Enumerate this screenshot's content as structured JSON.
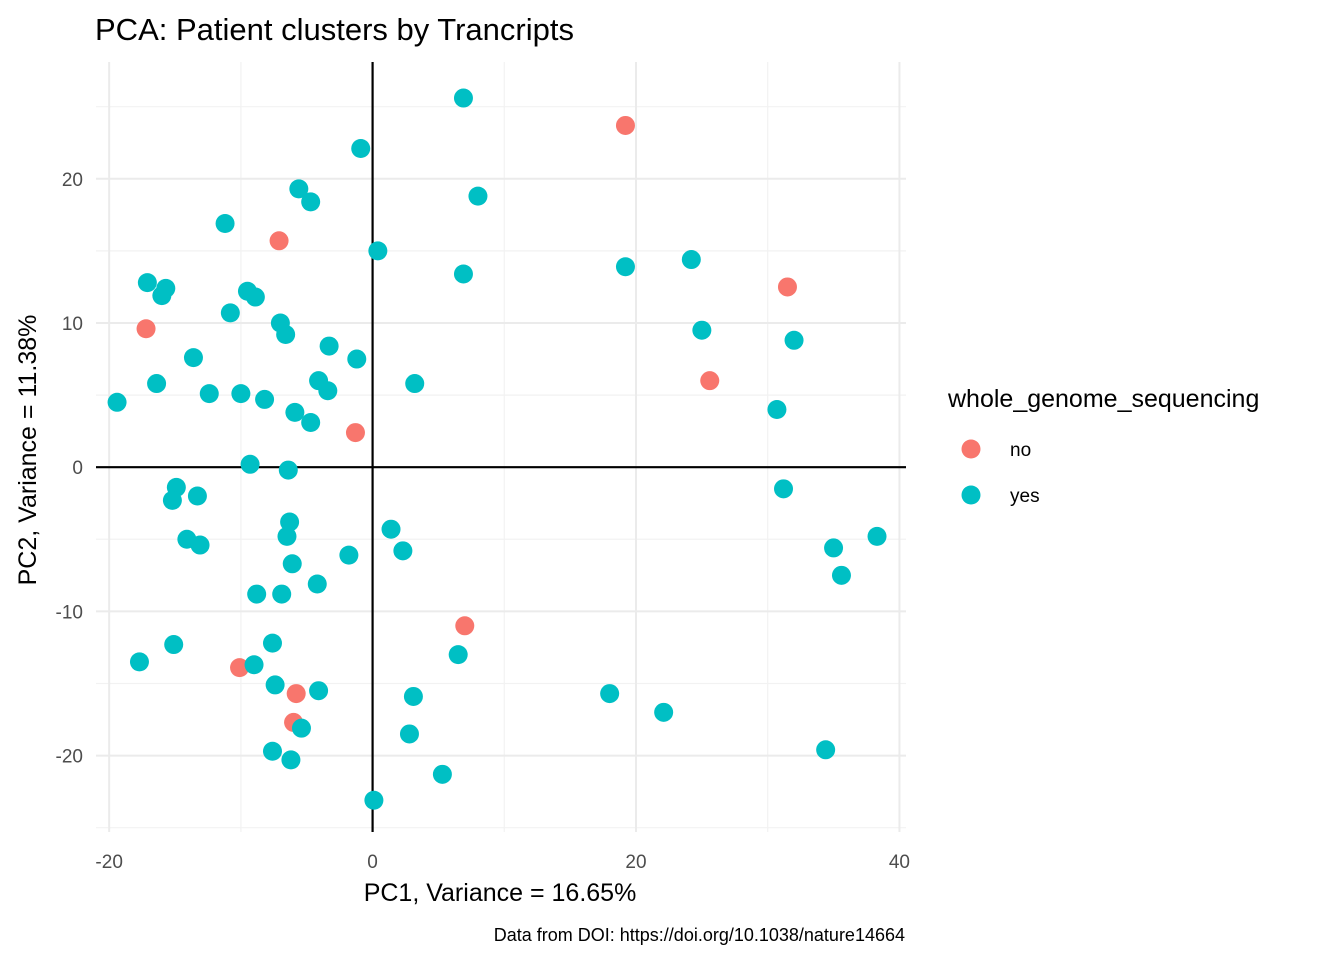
{
  "chart_data": {
    "type": "scatter",
    "title": "PCA: Patient clusters by Trancripts",
    "xlabel": "PC1, Variance = 16.65%",
    "ylabel": "PC2, Variance = 11.38%",
    "caption": "Data from DOI: https://doi.org/10.1038/nature14664",
    "xlim": [
      -21,
      40.5
    ],
    "ylim": [
      -25.3,
      28.1
    ],
    "x_ticks": [
      -20,
      0,
      20,
      40
    ],
    "y_ticks": [
      -20,
      -10,
      0,
      10,
      20
    ],
    "x_tick_labels": [
      "-20",
      "0",
      "20",
      "40"
    ],
    "y_tick_labels": [
      "-20",
      "-10",
      "0",
      "10",
      "20"
    ],
    "grid": true,
    "zero_lines": true,
    "legend": {
      "title": "whole_genome_sequencing",
      "position": "right",
      "entries": [
        {
          "label": "no",
          "color": "#F8766D"
        },
        {
          "label": "yes",
          "color": "#00BFC4"
        }
      ]
    },
    "series": [
      {
        "name": "no",
        "color": "#F8766D",
        "points": [
          [
            19.2,
            23.7
          ],
          [
            -7.1,
            15.7
          ],
          [
            31.5,
            12.5
          ],
          [
            -17.2,
            9.6
          ],
          [
            25.6,
            6.0
          ],
          [
            -1.3,
            2.4
          ],
          [
            7.0,
            -11.0
          ],
          [
            -10.1,
            -13.9
          ],
          [
            -5.8,
            -15.7
          ],
          [
            -6.0,
            -17.7
          ]
        ]
      },
      {
        "name": "yes",
        "color": "#00BFC4",
        "points": [
          [
            6.9,
            25.6
          ],
          [
            -0.9,
            22.1
          ],
          [
            -5.6,
            19.3
          ],
          [
            -4.7,
            18.4
          ],
          [
            8.0,
            18.8
          ],
          [
            -11.2,
            16.9
          ],
          [
            0.4,
            15.0
          ],
          [
            6.9,
            13.4
          ],
          [
            19.2,
            13.9
          ],
          [
            24.2,
            14.4
          ],
          [
            -17.1,
            12.8
          ],
          [
            -15.7,
            12.4
          ],
          [
            -16.0,
            11.9
          ],
          [
            -9.5,
            12.2
          ],
          [
            -8.9,
            11.8
          ],
          [
            -10.8,
            10.7
          ],
          [
            -7.0,
            10.0
          ],
          [
            -6.6,
            9.2
          ],
          [
            25.0,
            9.5
          ],
          [
            32.0,
            8.8
          ],
          [
            -3.3,
            8.4
          ],
          [
            -1.2,
            7.5
          ],
          [
            -13.6,
            7.6
          ],
          [
            -16.4,
            5.8
          ],
          [
            -4.1,
            6.0
          ],
          [
            -3.4,
            5.3
          ],
          [
            3.2,
            5.8
          ],
          [
            -12.4,
            5.1
          ],
          [
            -10.0,
            5.1
          ],
          [
            -8.2,
            4.7
          ],
          [
            -19.4,
            4.5
          ],
          [
            -5.9,
            3.8
          ],
          [
            -4.7,
            3.1
          ],
          [
            30.7,
            4.0
          ],
          [
            -9.3,
            0.2
          ],
          [
            -6.4,
            -0.2
          ],
          [
            -14.9,
            -1.4
          ],
          [
            -15.2,
            -2.3
          ],
          [
            -13.3,
            -2.0
          ],
          [
            31.2,
            -1.5
          ],
          [
            -6.3,
            -3.8
          ],
          [
            -6.5,
            -4.8
          ],
          [
            1.4,
            -4.3
          ],
          [
            2.3,
            -5.8
          ],
          [
            -14.1,
            -5.0
          ],
          [
            -13.1,
            -5.4
          ],
          [
            35.0,
            -5.6
          ],
          [
            38.3,
            -4.8
          ],
          [
            -1.8,
            -6.1
          ],
          [
            -6.1,
            -6.7
          ],
          [
            35.6,
            -7.5
          ],
          [
            -8.8,
            -8.8
          ],
          [
            -6.9,
            -8.8
          ],
          [
            -4.2,
            -8.1
          ],
          [
            6.5,
            -13.0
          ],
          [
            -17.7,
            -13.5
          ],
          [
            -15.1,
            -12.3
          ],
          [
            -7.6,
            -12.2
          ],
          [
            -9.0,
            -13.7
          ],
          [
            -7.4,
            -15.1
          ],
          [
            -4.1,
            -15.5
          ],
          [
            3.1,
            -15.9
          ],
          [
            18.0,
            -15.7
          ],
          [
            22.1,
            -17.0
          ],
          [
            -5.4,
            -18.1
          ],
          [
            -7.6,
            -19.7
          ],
          [
            -6.2,
            -20.3
          ],
          [
            2.8,
            -18.5
          ],
          [
            5.3,
            -21.3
          ],
          [
            34.4,
            -19.6
          ],
          [
            0.1,
            -23.1
          ]
        ]
      }
    ]
  }
}
